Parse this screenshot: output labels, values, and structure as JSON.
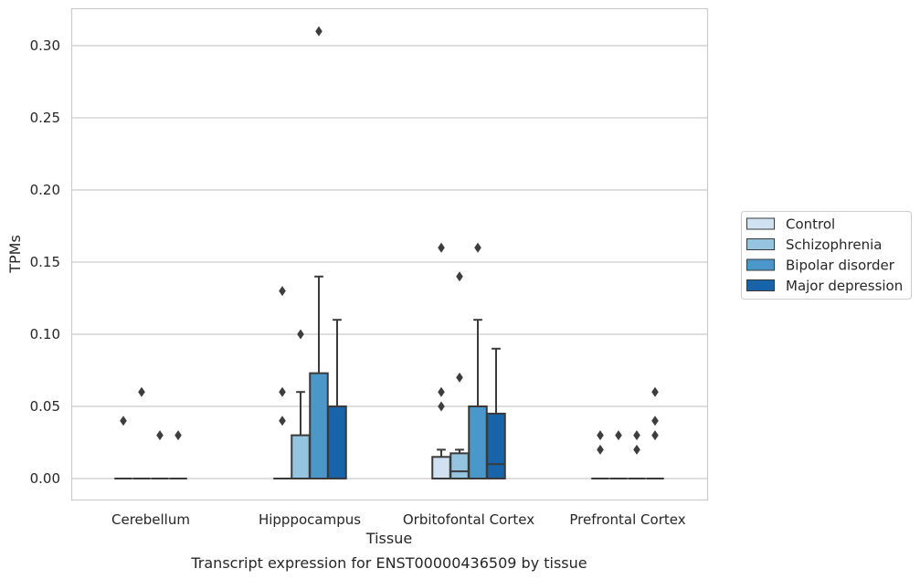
{
  "chart_data": {
    "type": "boxplot",
    "title": "",
    "xlabel": "Tissue",
    "ylabel": "TPMs",
    "caption": "Transcript expression for ENST00000436509 by tissue",
    "ylim": [
      -0.015,
      0.325
    ],
    "yticks": [
      "0.00",
      "0.05",
      "0.10",
      "0.15",
      "0.20",
      "0.25",
      "0.30"
    ],
    "ytick_values": [
      0,
      0.05,
      0.1,
      0.15,
      0.2,
      0.25,
      0.3
    ],
    "grid": true,
    "legend_position": "right",
    "categories": [
      "Cerebellum",
      "Hipppocampus",
      "Orbitofontal Cortex",
      "Prefrontal Cortex"
    ],
    "series": [
      {
        "name": "Control",
        "color": "#d0e1f2",
        "boxes": [
          {
            "q1": 0,
            "median": 0,
            "q3": 0,
            "whisker_low": 0,
            "whisker_high": 0,
            "outliers": [
              0.04
            ]
          },
          {
            "q1": 0,
            "median": 0,
            "q3": 0,
            "whisker_low": 0,
            "whisker_high": 0,
            "outliers": [
              0.04,
              0.06,
              0.13
            ]
          },
          {
            "q1": 0,
            "median": 0,
            "q3": 0.015,
            "whisker_low": 0,
            "whisker_high": 0.02,
            "outliers": [
              0.05,
              0.06,
              0.16
            ]
          },
          {
            "q1": 0,
            "median": 0,
            "q3": 0,
            "whisker_low": 0,
            "whisker_high": 0,
            "outliers": [
              0.02,
              0.03
            ]
          }
        ]
      },
      {
        "name": "Schizophrenia",
        "color": "#94c4df",
        "boxes": [
          {
            "q1": 0,
            "median": 0,
            "q3": 0,
            "whisker_low": 0,
            "whisker_high": 0,
            "outliers": [
              0.06
            ]
          },
          {
            "q1": 0,
            "median": 0,
            "q3": 0.03,
            "whisker_low": 0,
            "whisker_high": 0.06,
            "outliers": [
              0.1
            ]
          },
          {
            "q1": 0,
            "median": 0.005,
            "q3": 0.0175,
            "whisker_low": 0,
            "whisker_high": 0.02,
            "outliers": [
              0.07,
              0.14
            ]
          },
          {
            "q1": 0,
            "median": 0,
            "q3": 0,
            "whisker_low": 0,
            "whisker_high": 0,
            "outliers": [
              0.03
            ]
          }
        ]
      },
      {
        "name": "Bipolar disorder",
        "color": "#4a98c9",
        "boxes": [
          {
            "q1": 0,
            "median": 0,
            "q3": 0,
            "whisker_low": 0,
            "whisker_high": 0,
            "outliers": [
              0.03
            ]
          },
          {
            "q1": 0,
            "median": 0,
            "q3": 0.073,
            "whisker_low": 0,
            "whisker_high": 0.14,
            "outliers": [
              0.31
            ]
          },
          {
            "q1": 0,
            "median": 0,
            "q3": 0.05,
            "whisker_low": 0,
            "whisker_high": 0.11,
            "outliers": [
              0.16
            ]
          },
          {
            "q1": 0,
            "median": 0,
            "q3": 0,
            "whisker_low": 0,
            "whisker_high": 0,
            "outliers": [
              0.02,
              0.03
            ]
          }
        ]
      },
      {
        "name": "Major depression",
        "color": "#1764ab",
        "boxes": [
          {
            "q1": 0,
            "median": 0,
            "q3": 0,
            "whisker_low": 0,
            "whisker_high": 0,
            "outliers": [
              0.03
            ]
          },
          {
            "q1": 0,
            "median": 0,
            "q3": 0.05,
            "whisker_low": 0,
            "whisker_high": 0.11,
            "outliers": []
          },
          {
            "q1": 0,
            "median": 0.01,
            "q3": 0.045,
            "whisker_low": 0,
            "whisker_high": 0.09,
            "outliers": []
          },
          {
            "q1": 0,
            "median": 0,
            "q3": 0,
            "whisker_low": 0,
            "whisker_high": 0,
            "outliers": [
              0.03,
              0.04,
              0.06
            ]
          }
        ]
      }
    ]
  },
  "colors": {
    "grid": "#cccccc",
    "frame": "#cccccc",
    "stroke": "#3a3a3a",
    "outlier": "#3d3d3d"
  }
}
